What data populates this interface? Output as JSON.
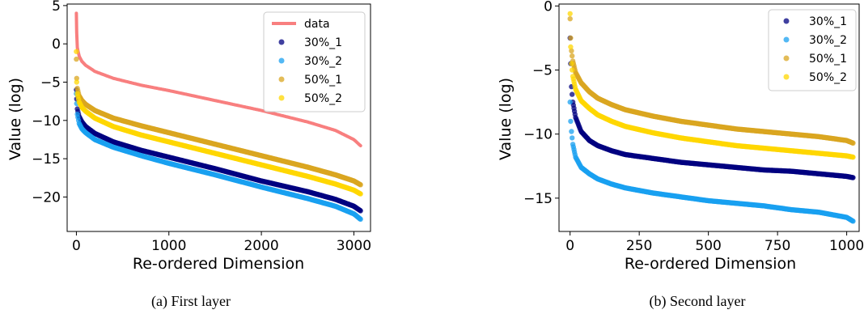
{
  "chart_data": [
    {
      "type": "scatter",
      "caption": "(a) First layer",
      "xlabel": "Re-ordered Dimension",
      "ylabel": "Value (log)",
      "xlim": [
        -100,
        3180
      ],
      "ylim": [
        -24.5,
        5.2
      ],
      "xticks": [
        0,
        1000,
        2000,
        3000
      ],
      "xtick_labels": [
        "0",
        "1000",
        "2000",
        "3000"
      ],
      "yticks": [
        5,
        0,
        -5,
        -10,
        -15,
        -20
      ],
      "ytick_labels": [
        "5",
        "0",
        "−5",
        "−10",
        "−15",
        "−20"
      ],
      "grid": false,
      "legend_position": "top-right",
      "series": [
        {
          "name": "data",
          "mark": "line",
          "color": "#f87f7f",
          "x": [
            0,
            3,
            10,
            30,
            60,
            100,
            200,
            400,
            700,
            1000,
            1500,
            2000,
            2500,
            2800,
            3000,
            3072
          ],
          "y": [
            4,
            1.5,
            -0.5,
            -1.6,
            -2.3,
            -2.8,
            -3.6,
            -4.5,
            -5.4,
            -6.1,
            -7.4,
            -8.7,
            -10.2,
            -11.3,
            -12.5,
            -13.3
          ]
        },
        {
          "name": "30%_1",
          "mark": "scatter",
          "color": "#000080",
          "x": [
            0,
            3,
            10,
            30,
            60,
            100,
            200,
            400,
            700,
            1000,
            1500,
            2000,
            2500,
            2800,
            3000,
            3072
          ],
          "y": [
            -6,
            -7.2,
            -8.5,
            -9.5,
            -10.2,
            -10.8,
            -11.7,
            -12.8,
            -13.9,
            -14.8,
            -16.3,
            -17.9,
            -19.3,
            -20.3,
            -21.2,
            -21.8
          ]
        },
        {
          "name": "30%_2",
          "mark": "scatter",
          "color": "#1aa0f0",
          "x": [
            0,
            3,
            10,
            30,
            60,
            100,
            200,
            400,
            700,
            1000,
            1500,
            2000,
            2500,
            2800,
            3000,
            3072
          ],
          "y": [
            -6.5,
            -7.8,
            -9.2,
            -10.4,
            -11.1,
            -11.6,
            -12.5,
            -13.5,
            -14.6,
            -15.6,
            -17.1,
            -18.7,
            -20.2,
            -21.2,
            -22.2,
            -22.9
          ]
        },
        {
          "name": "50%_1",
          "mark": "scatter",
          "color": "#daa520",
          "x": [
            0,
            3,
            10,
            30,
            60,
            100,
            200,
            400,
            700,
            1000,
            1500,
            2000,
            2500,
            2800,
            3000,
            3072
          ],
          "y": [
            -2,
            -4.5,
            -5.8,
            -6.8,
            -7.4,
            -7.9,
            -8.7,
            -9.7,
            -10.7,
            -11.6,
            -13.1,
            -14.6,
            -16.1,
            -17.1,
            -17.9,
            -18.4
          ]
        },
        {
          "name": "50%_2",
          "mark": "scatter",
          "color": "#ffd700",
          "x": [
            0,
            3,
            10,
            30,
            60,
            100,
            200,
            400,
            700,
            1000,
            1500,
            2000,
            2500,
            2800,
            3000,
            3072
          ],
          "y": [
            -1,
            -5,
            -6.5,
            -7.6,
            -8.3,
            -8.8,
            -9.7,
            -10.8,
            -11.9,
            -12.8,
            -14.3,
            -15.8,
            -17.3,
            -18.3,
            -19.1,
            -19.6
          ]
        }
      ]
    },
    {
      "type": "scatter",
      "caption": "(b) Second layer",
      "xlabel": "Re-ordered Dimension",
      "ylabel": "Value (log)",
      "xlim": [
        -40,
        1045
      ],
      "ylim": [
        -17.6,
        0.15
      ],
      "xticks": [
        0,
        250,
        500,
        750,
        1000
      ],
      "xtick_labels": [
        "0",
        "250",
        "500",
        "750",
        "1000"
      ],
      "yticks": [
        0,
        -5,
        -10,
        -15
      ],
      "ytick_labels": [
        "0",
        "−5",
        "−10",
        "−15"
      ],
      "grid": false,
      "legend_position": "top-right",
      "series": [
        {
          "name": "30%_1",
          "mark": "scatter",
          "color": "#000080",
          "x": [
            0,
            2,
            5,
            10,
            20,
            40,
            70,
            100,
            150,
            200,
            300,
            400,
            500,
            600,
            700,
            800,
            900,
            1000,
            1023
          ],
          "y": [
            -2.5,
            -4.5,
            -6.3,
            -7.5,
            -8.7,
            -9.8,
            -10.5,
            -10.9,
            -11.3,
            -11.6,
            -11.9,
            -12.2,
            -12.4,
            -12.6,
            -12.8,
            -12.9,
            -13.1,
            -13.3,
            -13.4
          ]
        },
        {
          "name": "30%_2",
          "mark": "scatter",
          "color": "#1aa0f0",
          "x": [
            0,
            2,
            5,
            10,
            20,
            40,
            70,
            100,
            150,
            200,
            300,
            400,
            500,
            600,
            700,
            800,
            900,
            1000,
            1023
          ],
          "y": [
            -7.5,
            -9,
            -9.8,
            -10.8,
            -11.8,
            -12.6,
            -13.1,
            -13.5,
            -13.9,
            -14.2,
            -14.6,
            -14.9,
            -15.2,
            -15.4,
            -15.6,
            -15.9,
            -16.1,
            -16.5,
            -16.8
          ]
        },
        {
          "name": "50%_1",
          "mark": "scatter",
          "color": "#daa520",
          "x": [
            0,
            2,
            5,
            10,
            20,
            40,
            70,
            100,
            150,
            200,
            300,
            400,
            500,
            600,
            700,
            800,
            900,
            1000,
            1023
          ],
          "y": [
            -1,
            -2.5,
            -3.5,
            -4.3,
            -5.2,
            -6,
            -6.7,
            -7.2,
            -7.7,
            -8.1,
            -8.6,
            -9,
            -9.3,
            -9.6,
            -9.8,
            -10,
            -10.2,
            -10.5,
            -10.7
          ]
        },
        {
          "name": "50%_2",
          "mark": "scatter",
          "color": "#ffd700",
          "x": [
            0,
            2,
            5,
            10,
            20,
            40,
            70,
            100,
            150,
            200,
            300,
            400,
            500,
            600,
            700,
            800,
            900,
            1000,
            1023
          ],
          "y": [
            -0.6,
            -3.2,
            -4.5,
            -5.5,
            -6.5,
            -7.4,
            -8,
            -8.5,
            -9,
            -9.4,
            -9.9,
            -10.3,
            -10.6,
            -10.9,
            -11.1,
            -11.3,
            -11.5,
            -11.7,
            -11.8
          ]
        }
      ]
    }
  ]
}
